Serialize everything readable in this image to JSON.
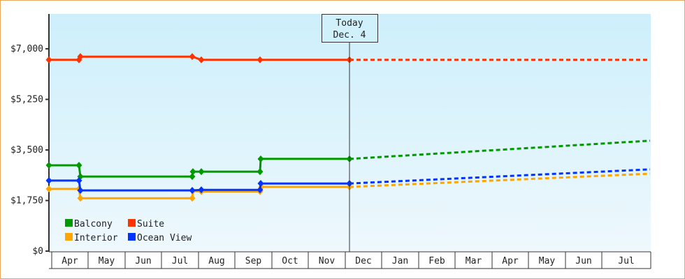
{
  "chart_data": {
    "type": "line",
    "title": "",
    "xlabel": "",
    "ylabel": "",
    "ylim": [
      0,
      8000
    ],
    "y_ticks": [
      "$0",
      "$1,750",
      "$3,500",
      "$5,250",
      "$7,000"
    ],
    "y_tick_values": [
      0,
      1750,
      3500,
      5250,
      7000
    ],
    "x_tick_labels": [
      "Apr",
      "May",
      "Jun",
      "Jul",
      "Aug",
      "Sep",
      "Oct",
      "Nov",
      "Dec",
      "Jan",
      "Feb",
      "Mar",
      "Apr",
      "May",
      "Jun",
      "Jul"
    ],
    "today_marker": {
      "line1": "Today",
      "line2": "Dec. 4"
    },
    "legend": [
      {
        "name": "Balcony",
        "color": "#009900"
      },
      {
        "name": "Suite",
        "color": "#ff3300"
      },
      {
        "name": "Interior",
        "color": "#ffa500"
      },
      {
        "name": "Ocean View",
        "color": "#0033ff"
      }
    ],
    "series": [
      {
        "name": "Suite",
        "color": "#ff3300",
        "historical": [
          [
            70,
            6620
          ],
          [
            113,
            6620
          ],
          [
            115,
            6730
          ],
          [
            275,
            6730
          ],
          [
            288,
            6620
          ],
          [
            372,
            6620
          ],
          [
            500,
            6620
          ]
        ],
        "projection": [
          [
            500,
            6620
          ],
          [
            930,
            6620
          ]
        ]
      },
      {
        "name": "Balcony",
        "color": "#009900",
        "historical": [
          [
            70,
            2970
          ],
          [
            113,
            2970
          ],
          [
            115,
            2580
          ],
          [
            275,
            2580
          ],
          [
            276,
            2750
          ],
          [
            288,
            2750
          ],
          [
            372,
            2750
          ],
          [
            373,
            3190
          ],
          [
            500,
            3190
          ]
        ],
        "projection": [
          [
            500,
            3190
          ],
          [
            930,
            3820
          ]
        ]
      },
      {
        "name": "Ocean View",
        "color": "#0033ff",
        "historical": [
          [
            70,
            2440
          ],
          [
            113,
            2440
          ],
          [
            115,
            2100
          ],
          [
            275,
            2100
          ],
          [
            288,
            2120
          ],
          [
            372,
            2120
          ],
          [
            373,
            2340
          ],
          [
            500,
            2340
          ]
        ],
        "projection": [
          [
            500,
            2340
          ],
          [
            930,
            2830
          ]
        ]
      },
      {
        "name": "Interior",
        "color": "#ffa500",
        "historical": [
          [
            70,
            2150
          ],
          [
            113,
            2150
          ],
          [
            115,
            1830
          ],
          [
            275,
            1830
          ],
          [
            276,
            2080
          ],
          [
            288,
            2060
          ],
          [
            372,
            2060
          ],
          [
            374,
            2220
          ],
          [
            500,
            2220
          ]
        ],
        "projection": [
          [
            500,
            2220
          ],
          [
            930,
            2680
          ]
        ]
      }
    ]
  }
}
